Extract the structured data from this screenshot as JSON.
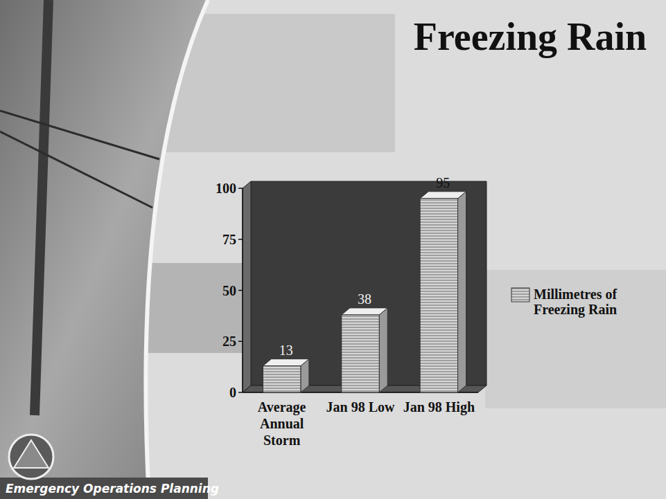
{
  "chart_data": {
    "type": "bar",
    "title": "Freezing Rain",
    "categories": [
      "Average Annual Storm",
      "Jan 98 Low",
      "Jan 98 High"
    ],
    "series": [
      {
        "name": "Millimetres of Freezing Rain",
        "color": "#d6d6d6",
        "values": [
          13,
          38,
          95
        ]
      }
    ],
    "ylim": [
      0,
      100
    ],
    "yticks": [
      0,
      25,
      50,
      75,
      100
    ],
    "legend": "right",
    "data_labels": true,
    "footer": "Emergency Operations Planning"
  }
}
